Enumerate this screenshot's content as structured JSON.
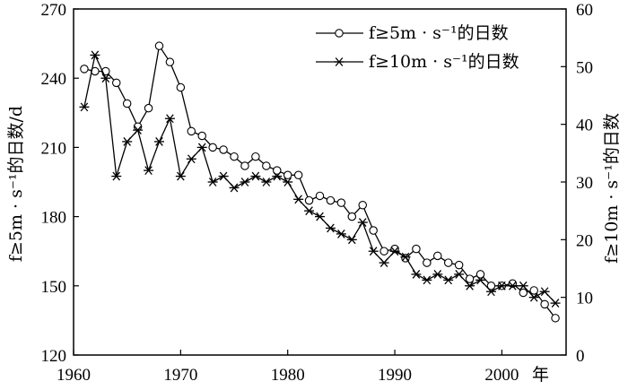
{
  "chart_data": {
    "type": "line",
    "x_unit_label": "年",
    "xlim": [
      1960,
      2006
    ],
    "x_ticks": [
      "1960",
      "1970",
      "1980",
      "1990",
      "2000"
    ],
    "y_left": {
      "label": "f≥5m · s⁻¹的日数/d",
      "ylim": [
        120,
        270
      ],
      "ticks": [
        "120",
        "150",
        "180",
        "210",
        "240",
        "270"
      ]
    },
    "y_right": {
      "label": "f≥10m · s⁻¹的日数",
      "ylim": [
        0,
        60
      ],
      "ticks": [
        "0",
        "10",
        "20",
        "30",
        "40",
        "50",
        "60"
      ]
    },
    "legend_position": "top-right",
    "series": [
      {
        "name": "f≥5m · s⁻¹的日数",
        "axis": "left",
        "marker": "circle",
        "x": [
          1961,
          1962,
          1963,
          1964,
          1965,
          1966,
          1967,
          1968,
          1969,
          1970,
          1971,
          1972,
          1973,
          1974,
          1975,
          1976,
          1977,
          1978,
          1979,
          1980,
          1981,
          1982,
          1983,
          1984,
          1985,
          1986,
          1987,
          1988,
          1989,
          1990,
          1991,
          1992,
          1993,
          1994,
          1995,
          1996,
          1997,
          1998,
          1999,
          2000,
          2001,
          2002,
          2003,
          2004,
          2005
        ],
        "values": [
          244,
          243,
          243,
          238,
          229,
          219,
          227,
          254,
          247,
          236,
          217,
          215,
          210,
          209,
          206,
          202,
          206,
          202,
          200,
          198,
          198,
          187,
          189,
          187,
          186,
          180,
          185,
          174,
          165,
          166,
          162,
          166,
          160,
          163,
          160,
          159,
          153,
          155,
          150,
          150,
          151,
          147,
          148,
          142,
          136
        ]
      },
      {
        "name": "f≥10m · s⁻¹的日数",
        "axis": "right",
        "marker": "asterisk",
        "x": [
          1961,
          1962,
          1963,
          1964,
          1965,
          1966,
          1967,
          1968,
          1969,
          1970,
          1971,
          1972,
          1973,
          1974,
          1975,
          1976,
          1977,
          1978,
          1979,
          1980,
          1981,
          1982,
          1983,
          1984,
          1985,
          1986,
          1987,
          1988,
          1989,
          1990,
          1991,
          1992,
          1993,
          1994,
          1995,
          1996,
          1997,
          1998,
          1999,
          2000,
          2001,
          2002,
          2003,
          2004,
          2005
        ],
        "values": [
          43,
          52,
          48,
          31,
          37,
          39,
          32,
          37,
          41,
          31,
          34,
          36,
          30,
          31,
          29,
          30,
          31,
          30,
          31,
          30,
          27,
          25,
          24,
          22,
          21,
          20,
          23,
          18,
          16,
          18,
          17,
          14,
          13,
          14,
          13,
          14,
          12,
          13,
          11,
          12,
          12,
          12,
          10,
          11,
          9
        ]
      }
    ]
  }
}
